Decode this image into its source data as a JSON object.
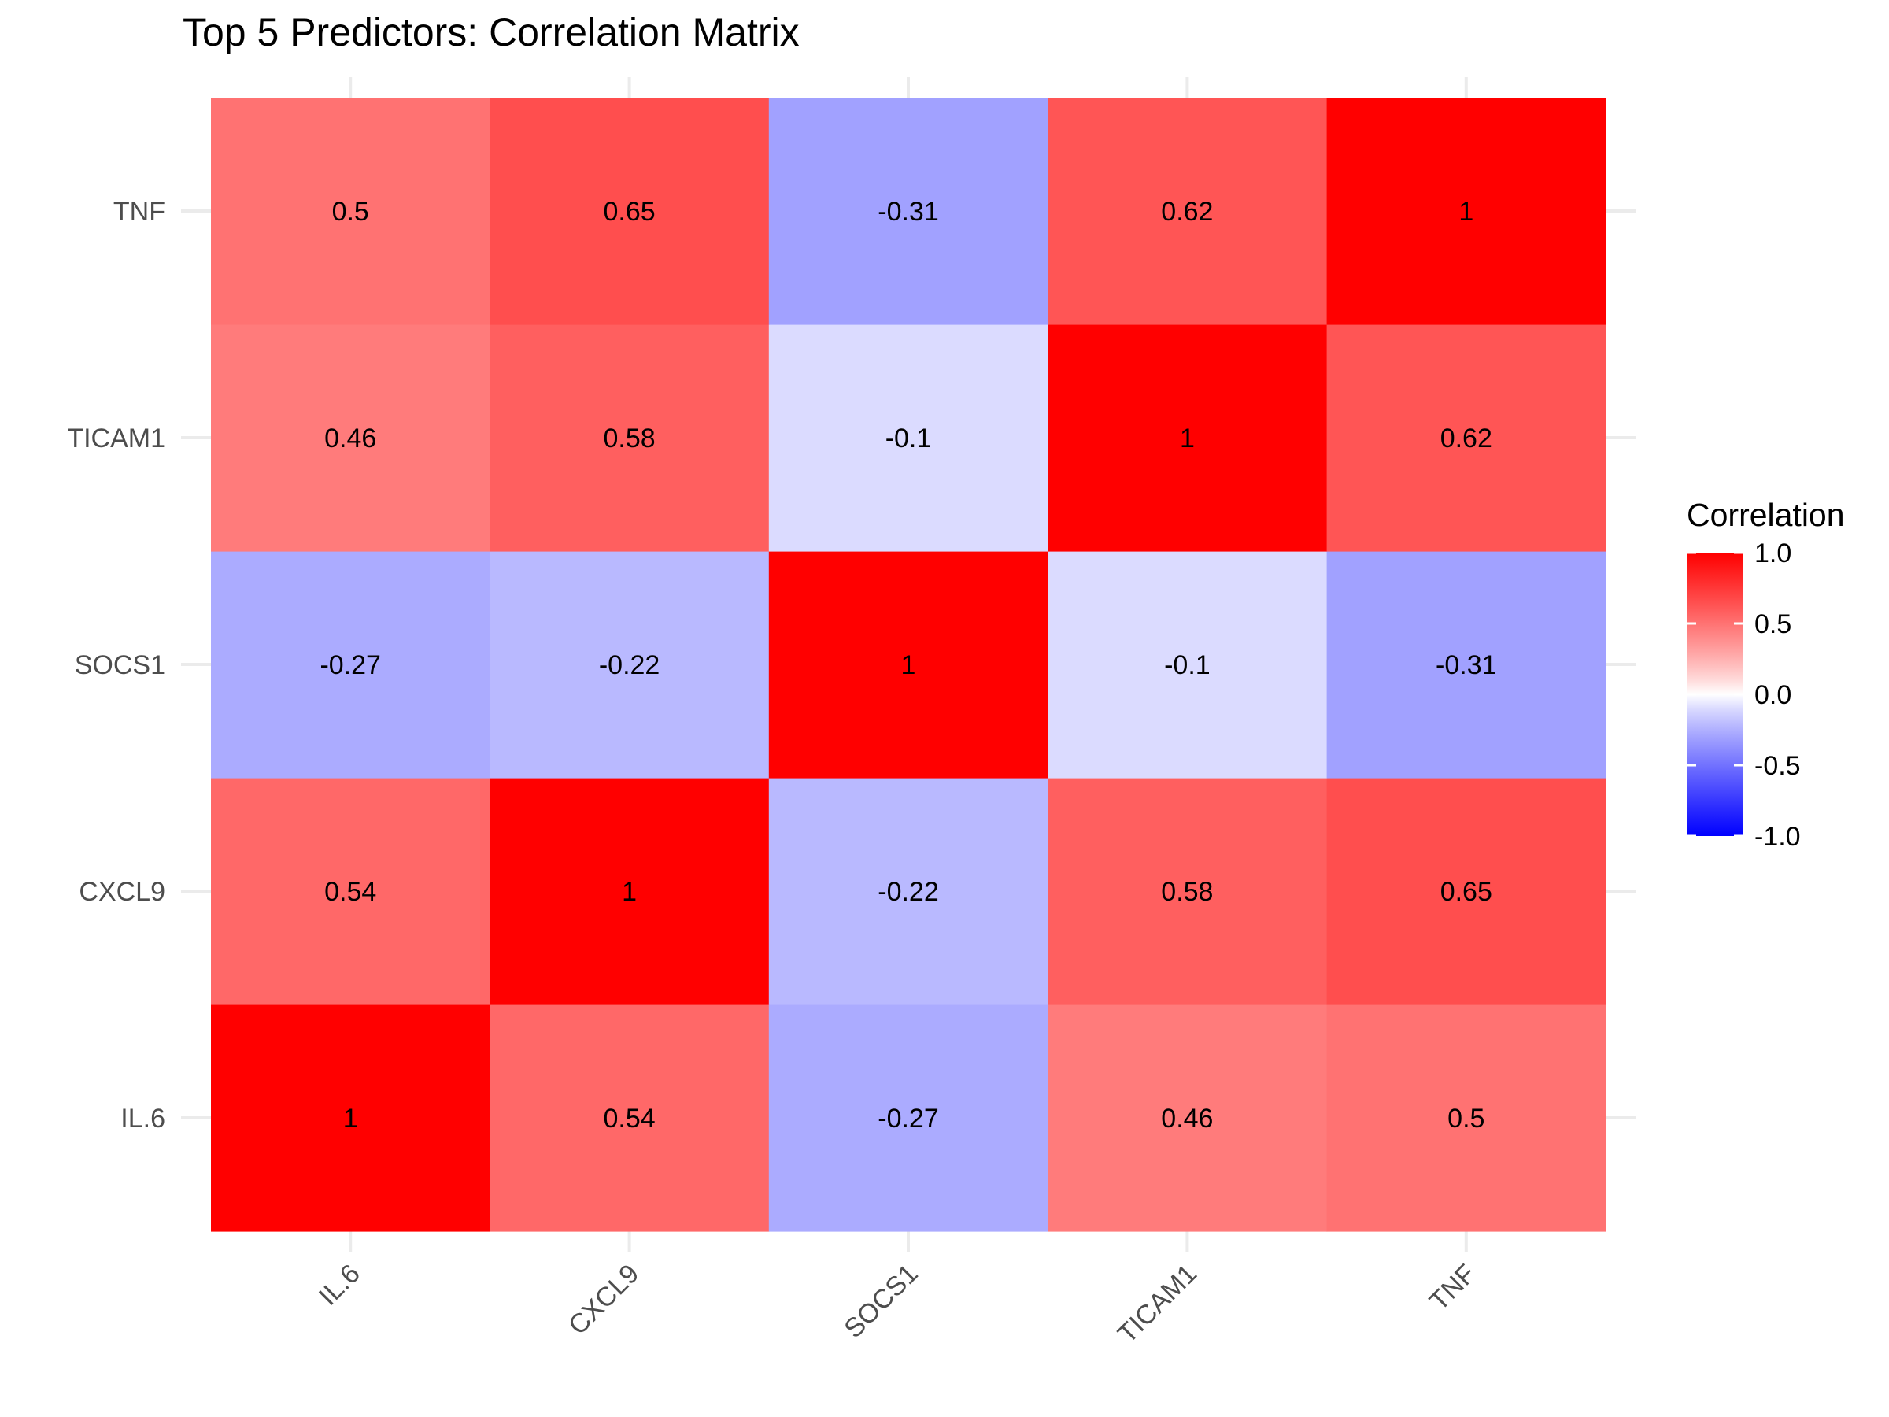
{
  "chart_data": {
    "type": "heatmap",
    "title": "Top 5 Predictors: Correlation Matrix",
    "xlabel": "",
    "ylabel": "",
    "x_categories": [
      "IL.6",
      "CXCL9",
      "SOCS1",
      "TICAM1",
      "TNF"
    ],
    "y_categories": [
      "IL.6",
      "CXCL9",
      "SOCS1",
      "TICAM1",
      "TNF"
    ],
    "values": [
      [
        1,
        0.54,
        -0.27,
        0.46,
        0.5
      ],
      [
        0.54,
        1,
        -0.22,
        0.58,
        0.65
      ],
      [
        -0.27,
        -0.22,
        1,
        -0.1,
        -0.31
      ],
      [
        0.46,
        0.58,
        -0.1,
        1,
        0.62
      ],
      [
        0.5,
        0.65,
        -0.31,
        0.62,
        1
      ]
    ],
    "value_labels": [
      [
        "1",
        "0.54",
        "-0.27",
        "0.46",
        "0.5"
      ],
      [
        "0.54",
        "1",
        "-0.22",
        "0.58",
        "0.65"
      ],
      [
        "-0.27",
        "-0.22",
        "1",
        "-0.1",
        "-0.31"
      ],
      [
        "0.46",
        "0.58",
        "-0.1",
        "1",
        "0.62"
      ],
      [
        "0.5",
        "0.65",
        "-0.31",
        "0.62",
        "1"
      ]
    ],
    "color_scale": {
      "low": "#0000ff",
      "mid": "#ffffff",
      "high": "#ff0000",
      "limits": [
        -1,
        1
      ],
      "midpoint": 0
    },
    "legend": {
      "title": "Correlation",
      "position": "right",
      "ticks": [
        1.0,
        0.5,
        0.0,
        -0.5,
        -1.0
      ],
      "tick_labels": [
        "1.0",
        "0.5",
        "0.0",
        "-0.5",
        "-1.0"
      ]
    },
    "x_tick_rotation_deg": 45,
    "grid": true
  }
}
